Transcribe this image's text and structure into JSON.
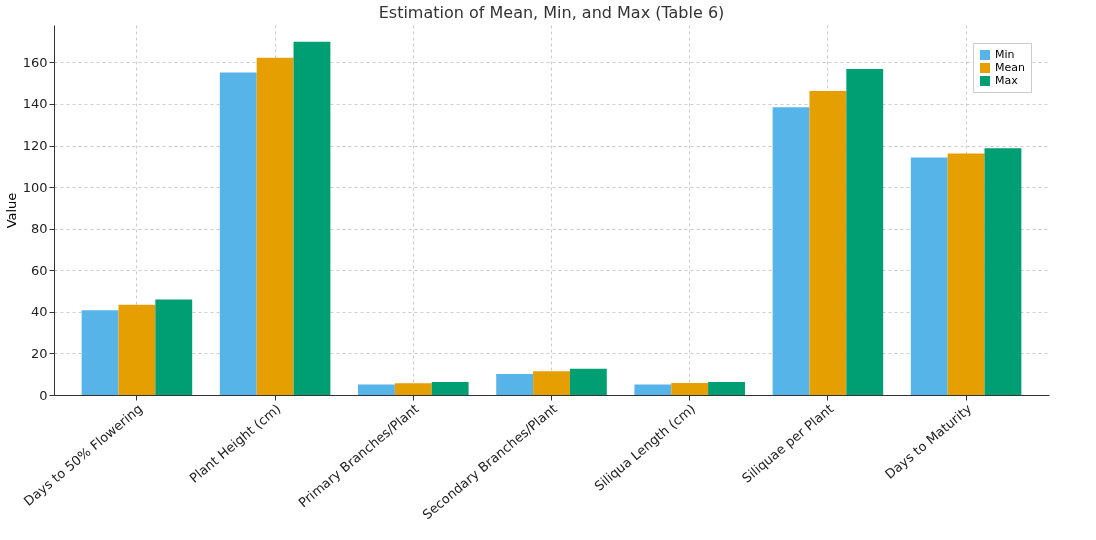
{
  "chart_data": {
    "type": "bar",
    "title": "Estimation of Mean, Min, and Max (Table 6)",
    "ylabel": "Value",
    "categories": [
      "Days to 50% Flowering",
      "Plant Height (cm)",
      "Primary Branches/Plant",
      "Secondary Branches/Plant",
      "Siliqua Length (cm)",
      "Siliquae per Plant",
      "Days to Maturity"
    ],
    "series": [
      {
        "name": "Min",
        "color": "#56b4e9",
        "values": [
          40.8,
          155.2,
          5.0,
          10.1,
          5.0,
          138.4,
          114.2
        ]
      },
      {
        "name": "Mean",
        "color": "#e69f00",
        "values": [
          43.4,
          162.2,
          5.6,
          11.4,
          5.8,
          146.2,
          116.2
        ]
      },
      {
        "name": "Max",
        "color": "#009e73",
        "values": [
          45.9,
          169.9,
          6.2,
          12.6,
          6.2,
          156.8,
          118.7
        ]
      }
    ],
    "ylim": [
      0,
      178
    ],
    "yticks": [
      0,
      20,
      40,
      60,
      80,
      100,
      120,
      140,
      160
    ],
    "grid": true,
    "legend": "top right"
  }
}
